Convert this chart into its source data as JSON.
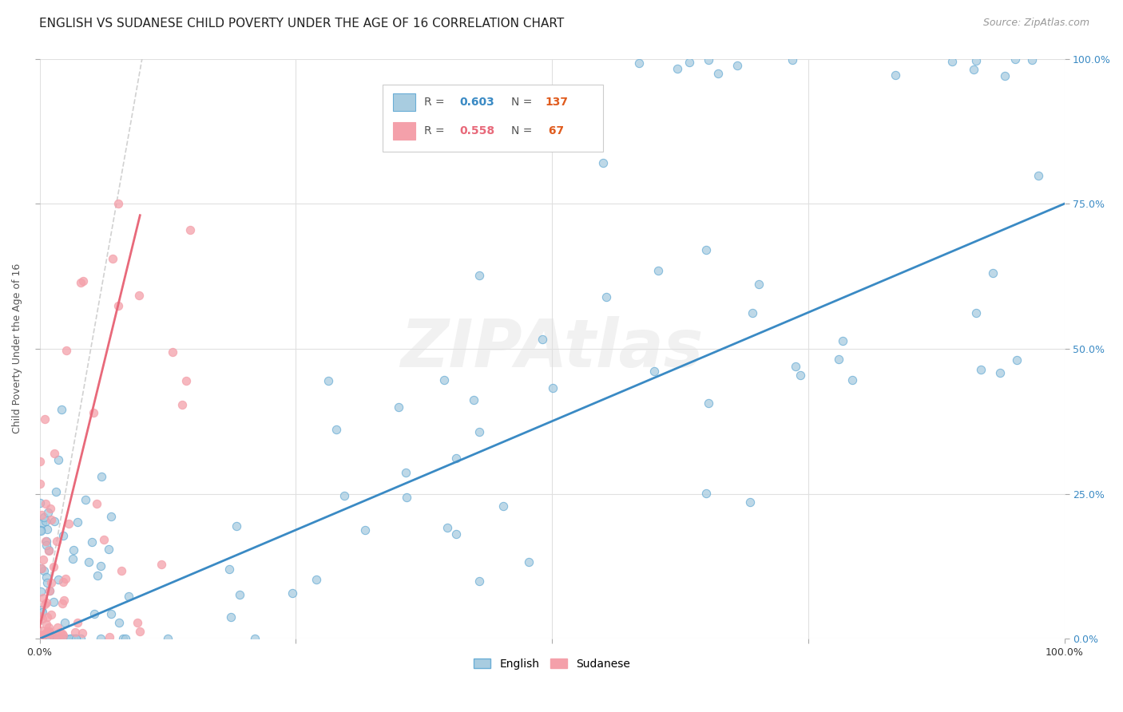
{
  "title": "ENGLISH VS SUDANESE CHILD POVERTY UNDER THE AGE OF 16 CORRELATION CHART",
  "source": "Source: ZipAtlas.com",
  "ylabel": "Child Poverty Under the Age of 16",
  "xlim": [
    0.0,
    1.0
  ],
  "ylim": [
    0.0,
    1.0
  ],
  "xticks": [
    0.0,
    0.25,
    0.5,
    0.75,
    1.0
  ],
  "yticks": [
    0.0,
    0.25,
    0.5,
    0.75,
    1.0
  ],
  "xticklabels": [
    "0.0%",
    "",
    "",
    "",
    "100.0%"
  ],
  "yticklabels_left": [
    "",
    "",
    "",
    "",
    ""
  ],
  "yticklabels_right": [
    "0.0%",
    "25.0%",
    "50.0%",
    "75.0%",
    "100.0%"
  ],
  "english_color": "#6baed6",
  "english_face": "#a8cce0",
  "sudanese_color": "#f4a0aa",
  "sudanese_face": "#f4a0aa",
  "english_R": 0.603,
  "english_N": 137,
  "sudanese_R": 0.558,
  "sudanese_N": 67,
  "grid_color": "#e0e0e0",
  "diagonal_color": "#cccccc",
  "eng_line_color": "#3a8ac4",
  "sud_line_color": "#e8697a",
  "watermark_color": "#e8e8e8",
  "title_fontsize": 11,
  "legend_R_color_eng": "#3a8ac4",
  "legend_R_color_sud": "#e8697a",
  "legend_N_color": "#e05c1e"
}
